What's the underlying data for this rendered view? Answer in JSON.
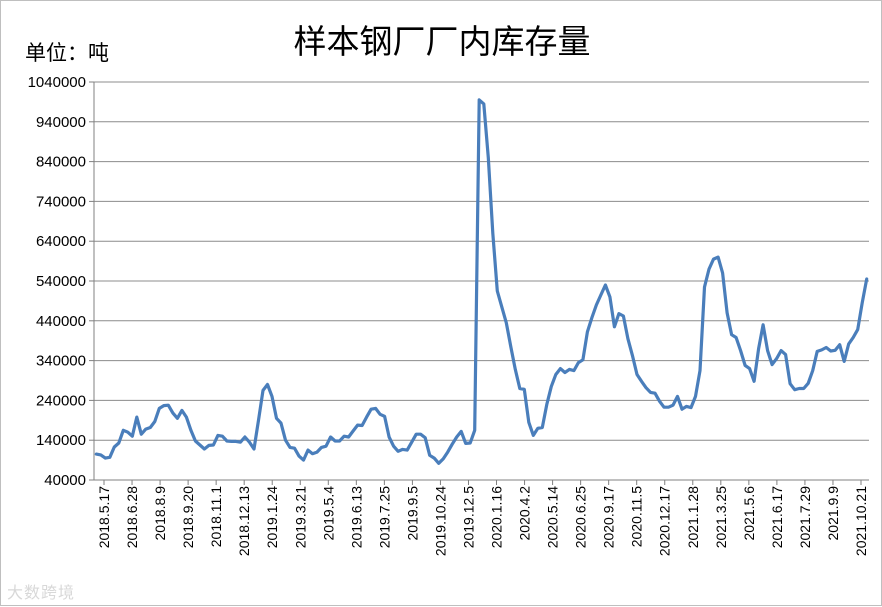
{
  "chart_data": {
    "type": "line",
    "title": "样本钢厂厂内库存量",
    "unit_label": "单位：吨",
    "ylim": [
      40000,
      1040000
    ],
    "y_ticks": [
      40000,
      140000,
      240000,
      340000,
      440000,
      540000,
      640000,
      740000,
      840000,
      940000,
      1040000
    ],
    "y_tick_labels": [
      "40000",
      "140000",
      "240000",
      "340000",
      "440000",
      "540000",
      "640000",
      "740000",
      "840000",
      "940000",
      "1040000"
    ],
    "grid": true,
    "legend": "none",
    "line_color": "#4A7EBB",
    "x_tick_labels": [
      "2018.5.17",
      "2018.6.28",
      "2018.8.9",
      "2018.9.20",
      "2018.11.1",
      "2018.12.13",
      "2019.1.24",
      "2019.3.21",
      "2019.5.4",
      "2019.6.13",
      "2019.7.25",
      "2019.9.5",
      "2019.10.24",
      "2019.12.5",
      "2020.1.16",
      "2020.4.2",
      "2020.5.14",
      "2020.6.25",
      "2020.9.17",
      "2020.11.5",
      "2020.12.17",
      "2021.1.28",
      "2021.3.25",
      "2021.5.6",
      "2021.6.17",
      "2021.7.29",
      "2021.9.9",
      "2021.10.21"
    ],
    "values": [
      105000,
      103000,
      95000,
      97000,
      123000,
      133000,
      165000,
      160000,
      150000,
      198000,
      155000,
      168000,
      172000,
      187000,
      220000,
      227000,
      228000,
      208000,
      195000,
      215000,
      198000,
      165000,
      138000,
      128000,
      118000,
      127000,
      128000,
      152000,
      150000,
      138000,
      137000,
      137000,
      135000,
      148000,
      135000,
      118000,
      190000,
      265000,
      280000,
      250000,
      195000,
      183000,
      140000,
      122000,
      120000,
      100000,
      90000,
      115000,
      106000,
      110000,
      122000,
      125000,
      148000,
      138000,
      138000,
      150000,
      148000,
      163000,
      178000,
      177000,
      198000,
      218000,
      220000,
      205000,
      200000,
      148000,
      125000,
      112000,
      117000,
      115000,
      135000,
      155000,
      155000,
      146000,
      102000,
      95000,
      82000,
      93000,
      110000,
      130000,
      148000,
      162000,
      132000,
      133000,
      165000,
      995000,
      985000,
      850000,
      660000,
      515000,
      475000,
      435000,
      375000,
      318000,
      270000,
      268000,
      185000,
      152000,
      170000,
      172000,
      230000,
      275000,
      305000,
      320000,
      310000,
      318000,
      315000,
      335000,
      342000,
      412000,
      448000,
      480000,
      505000,
      530000,
      500000,
      425000,
      458000,
      452000,
      395000,
      353000,
      305000,
      288000,
      272000,
      260000,
      258000,
      238000,
      223000,
      223000,
      228000,
      250000,
      218000,
      225000,
      222000,
      250000,
      315000,
      525000,
      570000,
      595000,
      600000,
      560000,
      460000,
      405000,
      398000,
      365000,
      328000,
      320000,
      288000,
      370000,
      430000,
      365000,
      330000,
      345000,
      365000,
      355000,
      282000,
      267000,
      270000,
      270000,
      283000,
      315000,
      363000,
      367000,
      373000,
      364000,
      366000,
      380000,
      338000,
      382000,
      398000,
      418000,
      485000,
      545000
    ]
  },
  "watermark_text": "大数跨境"
}
